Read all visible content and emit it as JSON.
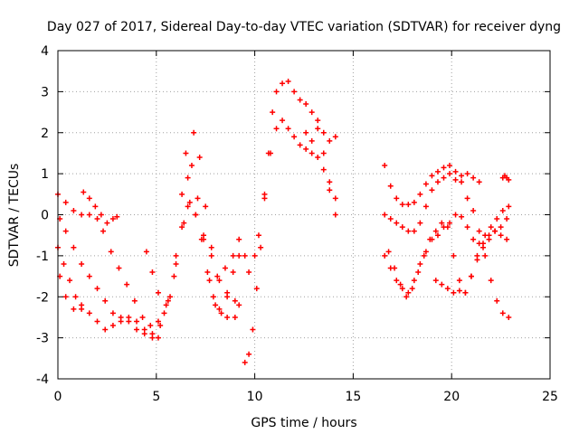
{
  "chart_data": {
    "type": "scatter",
    "title": "Day 027 of 2017, Sidereal Day-to-day VTEC variation (SDTVAR) for receiver dyng",
    "xlabel": "GPS time / hours",
    "ylabel": "SDTVAR / TECUs",
    "xlim": [
      0,
      25
    ],
    "ylim": [
      -4,
      4
    ],
    "xticks": [
      "0",
      "5",
      "10",
      "15",
      "20",
      "25"
    ],
    "yticks": [
      "-4",
      "-3",
      "-2",
      "-1",
      "0",
      "1",
      "2",
      "3",
      "4"
    ],
    "grid": true,
    "legend": "none",
    "marker": "+",
    "color": "#ff0000",
    "series": [
      {
        "x": [
          0.0,
          0.4,
          0.8,
          1.2,
          1.6,
          2.0,
          2.3,
          2.7,
          3.1,
          3.5,
          3.9,
          4.3,
          4.7,
          5.1,
          5.5,
          5.9,
          6.3,
          6.6,
          6.9,
          7.2,
          7.5,
          7.8,
          8.1,
          8.5,
          8.9
        ],
        "y": [
          0.5,
          0.3,
          0.1,
          0.0,
          0.0,
          -0.1,
          -0.4,
          -0.9,
          -1.3,
          -1.7,
          -2.1,
          -2.5,
          -2.7,
          -2.6,
          -2.2,
          -1.5,
          -0.3,
          0.9,
          2.0,
          1.4,
          0.2,
          -0.8,
          -1.5,
          -1.3,
          -1.0
        ]
      },
      {
        "x": [
          0.1,
          0.4,
          0.8,
          1.2,
          1.6,
          2.0,
          2.4,
          2.8,
          3.2,
          3.6,
          4.0,
          4.4,
          4.8,
          5.2,
          5.6,
          6.0,
          6.4,
          6.7,
          7.0,
          7.3,
          7.6,
          7.9,
          8.2,
          8.6,
          9.0
        ],
        "y": [
          -0.1,
          -0.4,
          -0.8,
          -1.2,
          -1.5,
          -1.8,
          -2.1,
          -2.4,
          -2.5,
          -2.6,
          -2.6,
          -2.8,
          -2.9,
          -2.7,
          -2.1,
          -1.2,
          -0.2,
          0.3,
          0.0,
          -0.6,
          -1.4,
          -2.0,
          -2.3,
          -2.5,
          -2.5
        ]
      },
      {
        "x": [
          0.1,
          0.4,
          0.8,
          1.2,
          1.6,
          2.0,
          2.4,
          2.8,
          3.2,
          3.6,
          4.0,
          4.4,
          4.8,
          5.1
        ],
        "y": [
          -1.5,
          -2.0,
          -2.3,
          -2.2,
          -2.4,
          -2.6,
          -2.8,
          -2.7,
          -2.6,
          -2.5,
          -2.8,
          -2.9,
          -3.0,
          -3.0
        ]
      },
      {
        "x": [
          0.0,
          0.3,
          0.6,
          0.9,
          1.2
        ],
        "y": [
          -0.8,
          -1.2,
          -1.6,
          -2.0,
          -2.3
        ]
      },
      {
        "x": [
          1.3,
          1.6,
          1.9,
          2.2,
          2.5,
          2.8,
          3.0
        ],
        "y": [
          0.55,
          0.4,
          0.2,
          0.0,
          -0.2,
          -0.1,
          -0.05
        ]
      },
      {
        "x": [
          4.5,
          4.8,
          5.1,
          5.4,
          5.7,
          6.0,
          6.3,
          6.5,
          6.8,
          7.1,
          7.4,
          7.7,
          8.0,
          8.3,
          8.6,
          8.9,
          9.2
        ],
        "y": [
          -0.9,
          -1.4,
          -1.9,
          -2.4,
          -2.0,
          -1.0,
          0.5,
          1.5,
          1.2,
          0.4,
          -0.6,
          -1.6,
          -2.2,
          -2.4,
          -2.0,
          -1.4,
          -1.0
        ]
      },
      {
        "x": [
          6.6,
          7.0,
          7.4,
          7.8,
          8.2,
          8.6,
          9.0,
          9.2
        ],
        "y": [
          0.2,
          0.0,
          -0.5,
          -1.0,
          -1.6,
          -1.9,
          -2.1,
          -2.2
        ]
      },
      {
        "x": [
          9.2,
          9.5,
          9.7,
          10.0,
          10.2,
          10.5,
          10.8,
          11.1,
          11.4,
          11.7,
          12.0,
          12.3,
          12.6,
          12.9,
          13.2,
          13.5,
          13.8,
          14.1
        ],
        "y": [
          -0.6,
          -1.0,
          -1.4,
          -1.0,
          -0.5,
          0.5,
          1.5,
          2.1,
          2.3,
          2.1,
          1.9,
          1.7,
          1.6,
          1.5,
          1.4,
          1.1,
          0.6,
          0.4
        ]
      },
      {
        "x": [
          9.5,
          9.7,
          9.9,
          10.1,
          10.3,
          10.5,
          10.7,
          10.9,
          11.1,
          11.4,
          11.7,
          12.0,
          12.3,
          12.6,
          12.9,
          13.2,
          13.5,
          13.8,
          14.1
        ],
        "y": [
          -3.6,
          -3.4,
          -2.8,
          -1.8,
          -0.8,
          0.4,
          1.5,
          2.5,
          3.0,
          3.2,
          3.25,
          3.0,
          2.8,
          2.7,
          2.5,
          2.3,
          2.0,
          1.8,
          1.9
        ]
      },
      {
        "x": [
          12.6,
          12.9,
          13.2,
          13.5,
          13.8,
          14.1
        ],
        "y": [
          2.0,
          1.8,
          2.1,
          1.5,
          0.8,
          0.0
        ]
      },
      {
        "x": [
          16.6,
          16.9,
          17.2,
          17.5,
          17.8,
          18.1,
          18.4,
          18.7,
          19.0,
          19.3,
          19.6,
          19.9,
          20.2,
          20.5,
          20.8,
          21.1,
          21.4,
          21.7,
          22.0,
          22.3,
          22.6,
          22.9
        ],
        "y": [
          1.2,
          0.7,
          0.4,
          0.25,
          0.25,
          0.3,
          0.5,
          0.75,
          0.95,
          1.05,
          1.15,
          1.2,
          1.05,
          0.8,
          0.4,
          0.1,
          -0.4,
          -1.0,
          -1.6,
          -2.1,
          -2.4,
          -2.5
        ]
      },
      {
        "x": [
          16.6,
          16.9,
          17.2,
          17.5,
          17.8,
          18.1,
          18.4,
          18.7,
          19.0,
          19.3,
          19.6,
          19.9,
          20.2,
          20.5,
          20.8,
          21.1,
          21.4
        ],
        "y": [
          0.0,
          -0.1,
          -0.2,
          -0.3,
          -0.4,
          -0.4,
          -0.2,
          0.2,
          0.6,
          0.8,
          0.9,
          1.0,
          0.85,
          0.95,
          1.0,
          0.9,
          0.8
        ]
      },
      {
        "x": [
          16.6,
          16.9,
          17.2,
          17.5,
          17.8,
          18.1,
          18.4,
          18.7,
          19.0,
          19.3,
          19.6,
          19.9,
          20.2,
          20.5,
          20.8,
          21.1,
          21.4,
          21.7,
          22.0,
          22.3,
          22.6,
          22.9
        ],
        "y": [
          -1.0,
          -1.3,
          -1.6,
          -1.8,
          -1.9,
          -1.6,
          -1.2,
          -0.9,
          -0.6,
          -0.5,
          -0.3,
          -0.2,
          0.0,
          -0.05,
          -0.3,
          -0.6,
          -0.7,
          -0.5,
          -0.3,
          -0.1,
          0.1,
          0.2
        ]
      },
      {
        "x": [
          16.8,
          17.1,
          17.4,
          17.7,
          18.0,
          18.3,
          18.6,
          18.9,
          19.2,
          19.5,
          19.8,
          20.1,
          20.4,
          20.7,
          21.0,
          21.3,
          21.6,
          21.9,
          22.2,
          22.5,
          22.8
        ],
        "y": [
          -0.9,
          -1.3,
          -1.7,
          -2.0,
          -1.8,
          -1.4,
          -1.0,
          -0.6,
          -0.4,
          -0.2,
          -0.3,
          -1.0,
          -1.6,
          -1.9,
          -1.5,
          -1.0,
          -0.7,
          -0.5,
          -0.4,
          -0.5,
          -0.6
        ]
      },
      {
        "x": [
          19.2,
          19.5,
          19.8,
          20.1,
          20.4,
          20.7,
          21.0,
          21.3,
          21.6,
          21.9,
          22.2,
          22.5,
          22.8
        ],
        "y": [
          -1.6,
          -1.7,
          -1.8,
          -1.9,
          -1.85,
          -1.9,
          -1.5,
          -1.1,
          -0.8,
          -0.6,
          -0.4,
          -0.3,
          -0.1
        ]
      },
      {
        "x": [
          22.6,
          22.7,
          22.8,
          22.9
        ],
        "y": [
          0.9,
          0.95,
          0.9,
          0.85
        ]
      }
    ]
  }
}
